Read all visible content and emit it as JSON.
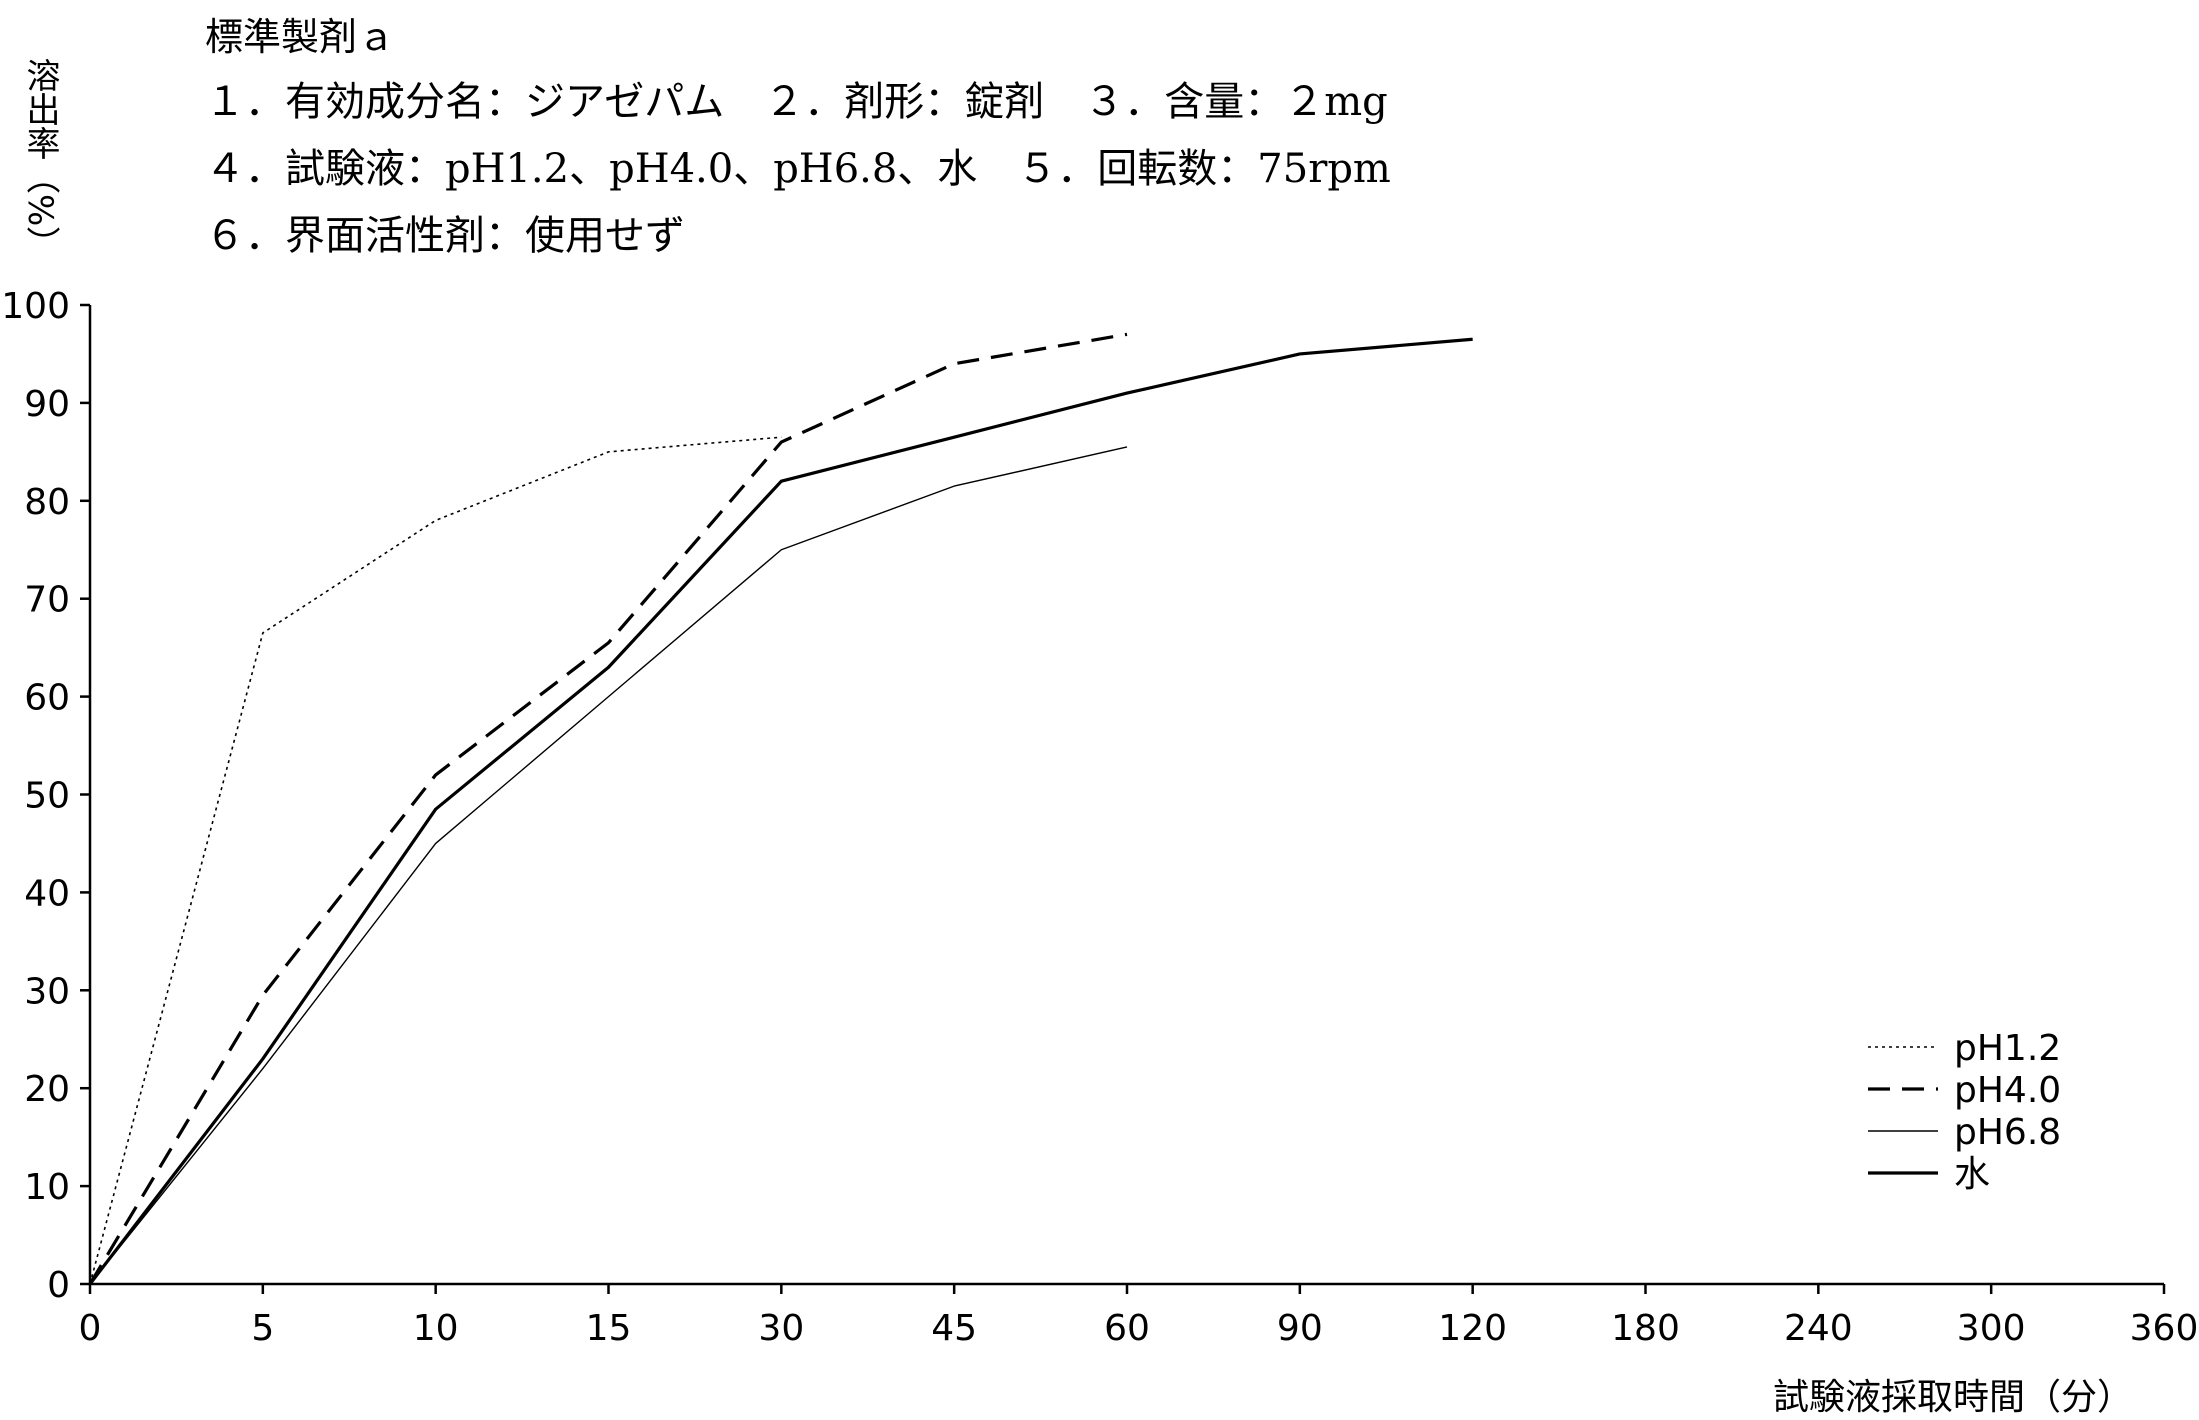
{
  "header": {
    "title": "標準製剤ａ",
    "line1": "１．有効成分名：ジアゼパム　２．剤形：錠剤　３．含量：２mg",
    "line2": "４．試験液：pH1.2、pH4.0、pH6.8、水　５．回転数：75rpm",
    "line3": "６．界面活性剤：使用せず"
  },
  "chart_data": {
    "type": "line",
    "ylabel": "溶出率（%）",
    "xlabel": "試験液採取時間（分）",
    "ylim": [
      0,
      100
    ],
    "yticks": [
      "0",
      "10",
      "20",
      "30",
      "40",
      "50",
      "60",
      "70",
      "80",
      "90",
      "100"
    ],
    "categories": [
      "0",
      "5",
      "10",
      "15",
      "30",
      "45",
      "60",
      "90",
      "120",
      "180",
      "240",
      "300",
      "360"
    ],
    "grid": false,
    "legend_position": "bottom-right",
    "series": [
      {
        "name": "pH1.2",
        "style": "dotted",
        "values": [
          0,
          66.5,
          78,
          85,
          86.5,
          null,
          null,
          null,
          null,
          null,
          null,
          null,
          null
        ]
      },
      {
        "name": "pH4.0",
        "style": "dashed",
        "values": [
          0,
          29.5,
          52,
          65.5,
          86,
          94,
          97,
          null,
          null,
          null,
          null,
          null,
          null
        ]
      },
      {
        "name": "pH6.8",
        "style": "thin",
        "values": [
          0,
          22,
          45,
          60,
          75,
          81.5,
          85.5,
          null,
          null,
          null,
          null,
          null,
          null
        ]
      },
      {
        "name": "水",
        "style": "solid",
        "values": [
          0,
          23,
          48.5,
          63,
          82,
          86.5,
          91,
          95,
          96.5,
          null,
          null,
          null,
          null
        ]
      }
    ]
  }
}
